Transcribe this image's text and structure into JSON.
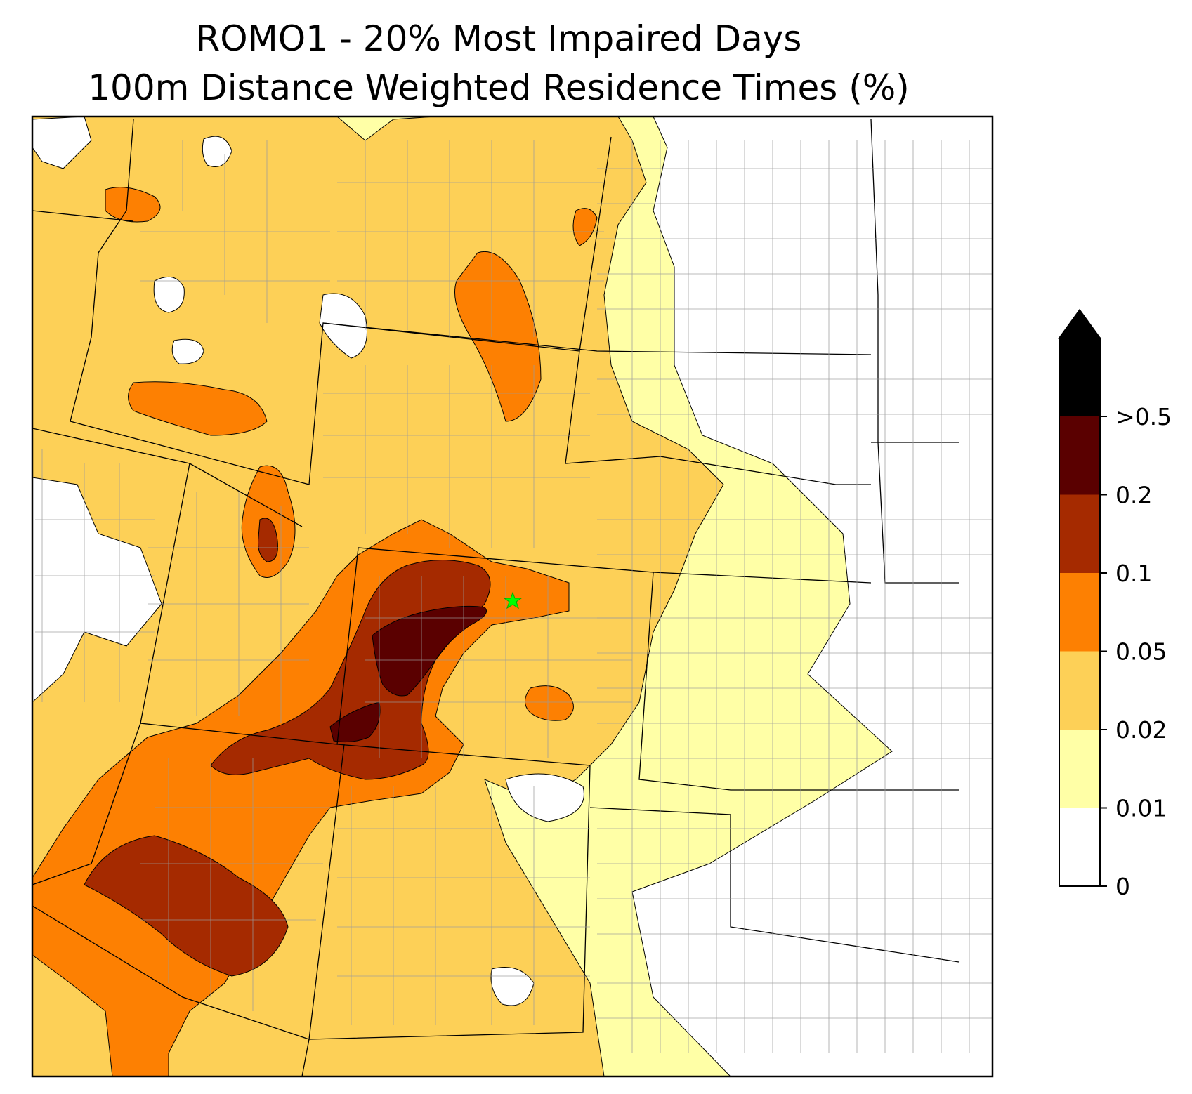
{
  "title": {
    "line1": "ROMO1 - 20% Most Impaired Days",
    "line2": "100m Distance Weighted Residence Times (%)"
  },
  "colorbar": {
    "levels": [
      {
        "label": "0",
        "color": "#ffffff"
      },
      {
        "label": "0.01",
        "color": "#ffffa6"
      },
      {
        "label": "0.02",
        "color": "#fdd057"
      },
      {
        "label": "0.05",
        "color": "#fd8002"
      },
      {
        "label": "0.1",
        "color": "#a52a00"
      },
      {
        "label": "0.2",
        "color": "#5a0000"
      },
      {
        "label": ">0.5",
        "color": "#000000"
      }
    ],
    "extend": "max"
  },
  "marker": {
    "name": "ROMO1",
    "symbol": "star",
    "color": "#00ff00"
  }
}
